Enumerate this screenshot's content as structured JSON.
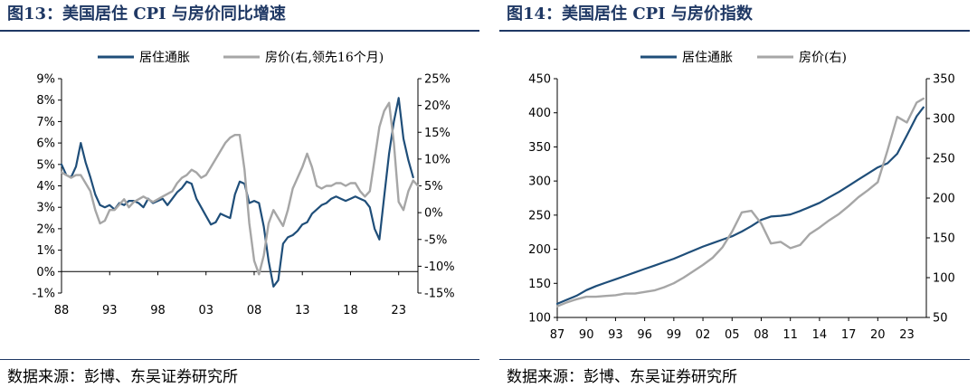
{
  "chart_data": [
    {
      "type": "line",
      "title": "图13：美国居住 CPI 与房价同比增速",
      "source": "数据来源：彭博、东吴证券研究所",
      "legend_position": "top",
      "x_ticks": [
        "88",
        "93",
        "98",
        "03",
        "08",
        "13",
        "18",
        "23"
      ],
      "xlim": [
        1988,
        2025
      ],
      "ylim_left": [
        -1,
        9
      ],
      "ylim_right": [
        -15,
        25
      ],
      "y_ticks_left": [
        "-1%",
        "0%",
        "1%",
        "2%",
        "3%",
        "4%",
        "5%",
        "6%",
        "7%",
        "8%",
        "9%"
      ],
      "y_ticks_right": [
        "-15%",
        "-10%",
        "-5%",
        "0%",
        "5%",
        "10%",
        "15%",
        "20%",
        "25%"
      ],
      "series": [
        {
          "name": "居住通胀",
          "axis": "left",
          "color": "#1f4e79",
          "x": [
            1988,
            1988.5,
            1989,
            1989.5,
            1990,
            1990.5,
            1991,
            1991.5,
            1992,
            1992.5,
            1993,
            1993.5,
            1994,
            1994.5,
            1995,
            1995.5,
            1996,
            1996.5,
            1997,
            1997.5,
            1998,
            1998.5,
            1999,
            1999.5,
            2000,
            2000.5,
            2001,
            2001.5,
            2002,
            2002.5,
            2003,
            2003.5,
            2004,
            2004.5,
            2005,
            2005.5,
            2006,
            2006.5,
            2007,
            2007.5,
            2008,
            2008.5,
            2009,
            2009.5,
            2010,
            2010.5,
            2011,
            2011.5,
            2012,
            2012.5,
            2013,
            2013.5,
            2014,
            2014.5,
            2015,
            2015.5,
            2016,
            2016.5,
            2017,
            2017.5,
            2018,
            2018.5,
            2019,
            2019.5,
            2020,
            2020.5,
            2021,
            2021.5,
            2022,
            2022.5,
            2023,
            2023.5,
            2024,
            2024.5
          ],
          "y": [
            5.0,
            4.5,
            4.4,
            4.9,
            6.0,
            5.1,
            4.4,
            3.6,
            3.1,
            3.0,
            3.1,
            2.9,
            3.2,
            3.1,
            3.3,
            3.3,
            3.2,
            3.0,
            3.4,
            3.2,
            3.3,
            3.4,
            3.1,
            3.4,
            3.7,
            3.9,
            4.2,
            4.1,
            3.4,
            3.0,
            2.6,
            2.2,
            2.3,
            2.7,
            2.6,
            2.5,
            3.6,
            4.2,
            4.1,
            3.2,
            3.3,
            3.2,
            2.1,
            0.5,
            -0.7,
            -0.4,
            1.3,
            1.6,
            1.7,
            1.9,
            2.2,
            2.3,
            2.7,
            2.9,
            3.1,
            3.2,
            3.4,
            3.5,
            3.4,
            3.3,
            3.4,
            3.5,
            3.4,
            3.3,
            3.0,
            2.0,
            1.5,
            3.5,
            5.5,
            7.0,
            8.1,
            6.2,
            5.2,
            4.4
          ]
        },
        {
          "name": "房价(右,领先16个月)",
          "axis": "right",
          "color": "#a6a6a6",
          "x": [
            1988,
            1988.5,
            1989,
            1989.5,
            1990,
            1990.5,
            1991,
            1991.5,
            1992,
            1992.5,
            1993,
            1993.5,
            1994,
            1994.5,
            1995,
            1995.5,
            1996,
            1996.5,
            1997,
            1997.5,
            1998,
            1998.5,
            1999,
            1999.5,
            2000,
            2000.5,
            2001,
            2001.5,
            2002,
            2002.5,
            2003,
            2003.5,
            2004,
            2004.5,
            2005,
            2005.5,
            2006,
            2006.5,
            2007,
            2007.5,
            2008,
            2008.5,
            2009,
            2009.5,
            2010,
            2010.5,
            2011,
            2011.5,
            2012,
            2012.5,
            2013,
            2013.5,
            2014,
            2014.5,
            2015,
            2015.5,
            2016,
            2016.5,
            2017,
            2017.5,
            2018,
            2018.5,
            2019,
            2019.5,
            2020,
            2020.5,
            2021,
            2021.5,
            2022,
            2022.5,
            2023,
            2023.5,
            2024,
            2024.5,
            2025
          ],
          "y": [
            7.5,
            7.0,
            6.5,
            7.0,
            7.0,
            5.5,
            4.0,
            0.5,
            -2.0,
            -1.5,
            0.5,
            0.5,
            1.5,
            2.5,
            1.0,
            2.0,
            2.5,
            3.0,
            2.5,
            2.0,
            2.5,
            3.0,
            3.5,
            4.0,
            5.5,
            6.5,
            7.0,
            8.0,
            7.5,
            6.5,
            7.0,
            8.5,
            10.0,
            11.5,
            13.0,
            14.0,
            14.5,
            14.5,
            8.0,
            -2.0,
            -9.0,
            -11.5,
            -8.0,
            -2.0,
            0.5,
            -1.0,
            -2.5,
            0.5,
            4.5,
            6.5,
            8.5,
            11.0,
            8.5,
            5.0,
            4.5,
            5.0,
            5.0,
            5.5,
            5.5,
            5.0,
            5.5,
            5.5,
            4.0,
            3.0,
            4.0,
            10.0,
            16.0,
            19.0,
            20.5,
            13.0,
            2.0,
            0.5,
            4.0,
            6.0,
            5.0
          ]
        }
      ]
    },
    {
      "type": "line",
      "title": "图14：美国居住 CPI 与房价指数",
      "source": "数据来源：彭博、东吴证券研究所",
      "legend_position": "top",
      "x_ticks": [
        "87",
        "90",
        "93",
        "96",
        "99",
        "02",
        "05",
        "08",
        "11",
        "14",
        "17",
        "20",
        "23"
      ],
      "xlim": [
        1987,
        2025
      ],
      "ylim_left": [
        100,
        450
      ],
      "ylim_right": [
        50,
        350
      ],
      "y_ticks_left": [
        "100",
        "150",
        "200",
        "250",
        "300",
        "350",
        "400",
        "450"
      ],
      "y_ticks_right": [
        "50",
        "100",
        "150",
        "200",
        "250",
        "300",
        "350"
      ],
      "series": [
        {
          "name": "居住通胀",
          "axis": "left",
          "color": "#1f4e79",
          "x": [
            1987,
            1988,
            1989,
            1990,
            1991,
            1992,
            1993,
            1994,
            1995,
            1996,
            1997,
            1998,
            1999,
            2000,
            2001,
            2002,
            2003,
            2004,
            2005,
            2006,
            2007,
            2008,
            2009,
            2010,
            2011,
            2012,
            2013,
            2014,
            2015,
            2016,
            2017,
            2018,
            2019,
            2020,
            2021,
            2022,
            2023,
            2024,
            2024.7
          ],
          "y": [
            120,
            126,
            132,
            140,
            146,
            151,
            156,
            161,
            166,
            171,
            176,
            181,
            186,
            192,
            198,
            204,
            209,
            214,
            219,
            226,
            234,
            243,
            248,
            249,
            251,
            256,
            262,
            268,
            276,
            284,
            293,
            302,
            311,
            320,
            326,
            340,
            367,
            395,
            408
          ]
        },
        {
          "name": "房价(右)",
          "axis": "right",
          "color": "#a6a6a6",
          "x": [
            1987,
            1988,
            1989,
            1990,
            1991,
            1992,
            1993,
            1994,
            1995,
            1996,
            1997,
            1998,
            1999,
            2000,
            2001,
            2002,
            2003,
            2004,
            2005,
            2006,
            2007,
            2008,
            2009,
            2010,
            2011,
            2012,
            2013,
            2014,
            2015,
            2016,
            2017,
            2018,
            2019,
            2020,
            2021,
            2022,
            2023,
            2024,
            2024.7
          ],
          "y": [
            64,
            69,
            73,
            76,
            76,
            77,
            78,
            80,
            80,
            82,
            84,
            88,
            93,
            100,
            108,
            116,
            125,
            138,
            158,
            182,
            184,
            168,
            143,
            145,
            137,
            141,
            155,
            163,
            172,
            180,
            190,
            201,
            210,
            220,
            260,
            302,
            295,
            320,
            325
          ]
        }
      ]
    }
  ]
}
